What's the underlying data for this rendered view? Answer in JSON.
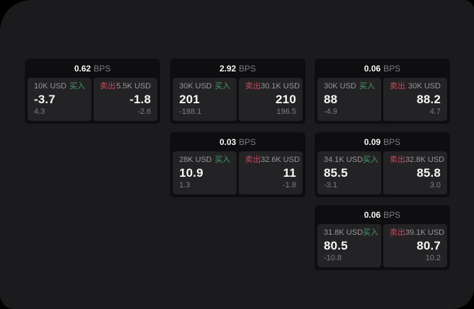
{
  "labels": {
    "bps_unit": "BPS",
    "buy": "买入",
    "sell": "卖出"
  },
  "colors": {
    "page-bg": "#1b1b1d",
    "card-bg": "#0e0e10",
    "cell-bg": "#232325",
    "text-primary": "#f7f7f7",
    "text-muted": "#97979c",
    "text-dim": "#7e7e84",
    "buy": "#3f9e62",
    "sell": "#c5495c"
  },
  "cards": [
    {
      "bps": "0.62",
      "buy": {
        "amount": "10K USD",
        "value": "-3.7",
        "delta": "4.3"
      },
      "sell": {
        "amount": "5.5K USD",
        "value": "-1.8",
        "delta": "-2.6"
      }
    },
    {
      "bps": "2.92",
      "buy": {
        "amount": "30K USD",
        "value": "201",
        "delta": "-188.1"
      },
      "sell": {
        "amount": "30.1K USD",
        "value": "210",
        "delta": "196.5"
      }
    },
    {
      "bps": "0.06",
      "buy": {
        "amount": "30K USD",
        "value": "88",
        "delta": "-4.9"
      },
      "sell": {
        "amount": "30K USD",
        "value": "88.2",
        "delta": "4.7"
      }
    },
    {
      "bps": "0.03",
      "buy": {
        "amount": "28K USD",
        "value": "10.9",
        "delta": "1.3"
      },
      "sell": {
        "amount": "32.6K USD",
        "value": "11",
        "delta": "-1.8"
      }
    },
    {
      "bps": "0.09",
      "buy": {
        "amount": "34.1K USD",
        "value": "85.5",
        "delta": "-3.1"
      },
      "sell": {
        "amount": "32.8K USD",
        "value": "85.8",
        "delta": "3.0"
      }
    },
    {
      "bps": "0.06",
      "buy": {
        "amount": "31.8K USD",
        "value": "80.5",
        "delta": "-10.8"
      },
      "sell": {
        "amount": "39.1K USD",
        "value": "80.7",
        "delta": "10.2"
      }
    }
  ]
}
